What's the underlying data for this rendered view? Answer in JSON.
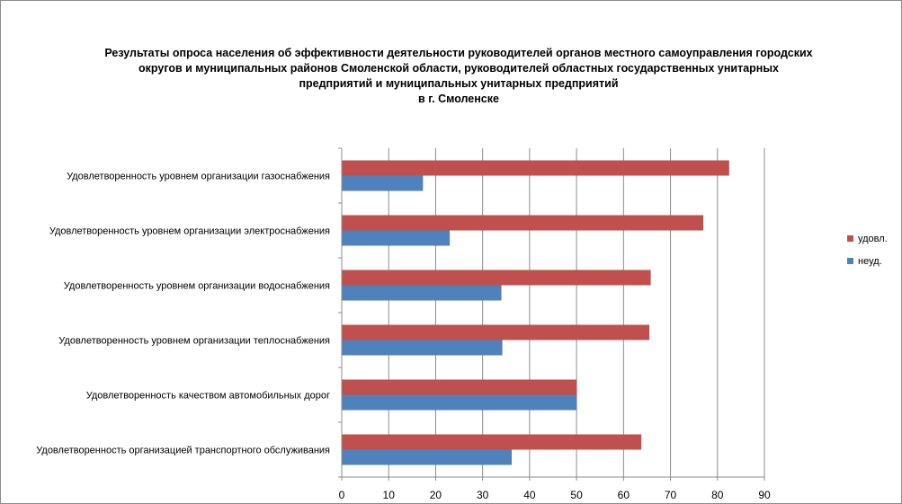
{
  "chart_data": {
    "type": "bar",
    "orientation": "horizontal",
    "title_lines": [
      "Результаты опроса населения об эффективности деятельности руководителей органов местного самоуправления городских",
      "округов и муниципальных районов Смоленской области, руководителей областных государственных унитарных",
      "предприятий и муниципальных унитарных предприятий",
      "в г. Смоленске"
    ],
    "categories": [
      "Удовлетворенность  уровнем  организации газоснабжения",
      "Удовлетворенность  уровнем организации электроснабжения",
      "Удовлетворенность  уровнем  организации водоснабжения",
      "Удовлетворенность  уровнем  организации теплоснабжения",
      "Удовлетворенность  качеством  автомобильных дорог",
      "Удовлетворенность  организацией транспортного обслуживания"
    ],
    "series": [
      {
        "name": "удовл.",
        "color": "#c0504d",
        "values": [
          82.5,
          77,
          65.8,
          65.5,
          50,
          63.8
        ]
      },
      {
        "name": "неуд.",
        "color": "#4f81bd",
        "values": [
          17.3,
          23,
          34,
          34.2,
          50,
          36.2
        ]
      }
    ],
    "legend_order": [
      "удовл.",
      "неуд."
    ],
    "xlim": [
      0,
      90
    ],
    "xticks": [
      0,
      10,
      20,
      30,
      40,
      50,
      60,
      70,
      80,
      90
    ],
    "grid": true,
    "legend_position": "right"
  }
}
